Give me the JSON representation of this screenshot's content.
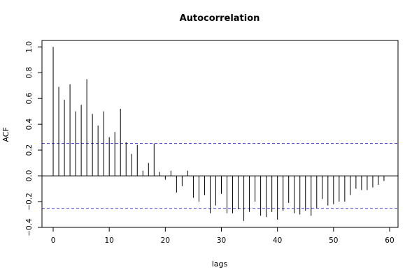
{
  "chart_data": {
    "type": "bar",
    "title": "Autocorrelation",
    "xlabel": "lags",
    "ylabel": "ACF",
    "xlim": [
      -2,
      61.5
    ],
    "ylim": [
      -0.4,
      1.05
    ],
    "x_ticks": [
      0,
      10,
      20,
      30,
      40,
      50,
      60
    ],
    "y_ticks": [
      -0.4,
      -0.2,
      0.0,
      0.2,
      0.4,
      0.6,
      0.8,
      1.0
    ],
    "y_tick_labels": [
      "−0.4",
      "−0.2",
      "0.0",
      "0.2",
      "0.4",
      "0.6",
      "0.8",
      "1.0"
    ],
    "confidence_bounds": [
      0.252,
      -0.252
    ],
    "zero_line": 0,
    "grid": false,
    "colors": {
      "bars": "#000000",
      "bounds": "#4444dd",
      "axes": "#000000"
    },
    "series": [
      {
        "x": [
          0,
          1,
          2,
          3,
          4,
          5,
          6,
          7,
          8,
          9,
          10,
          11,
          12,
          13,
          14,
          15,
          16,
          17,
          18,
          19,
          20,
          21,
          22,
          23,
          24,
          25,
          26,
          27,
          28,
          29,
          30,
          31,
          32,
          33,
          34,
          35,
          36,
          37,
          38,
          39,
          40,
          41,
          42,
          43,
          44,
          45,
          46,
          47,
          48,
          49,
          50,
          51,
          52,
          53,
          54,
          55,
          56,
          57,
          58,
          59
        ],
        "values": [
          1.0,
          0.69,
          0.59,
          0.71,
          0.5,
          0.55,
          0.75,
          0.48,
          0.39,
          0.5,
          0.3,
          0.34,
          0.52,
          0.26,
          0.17,
          0.24,
          0.04,
          0.1,
          0.25,
          0.03,
          -0.03,
          0.04,
          -0.13,
          -0.08,
          0.04,
          -0.17,
          -0.2,
          -0.15,
          -0.29,
          -0.23,
          -0.14,
          -0.29,
          -0.29,
          -0.26,
          -0.35,
          -0.28,
          -0.2,
          -0.31,
          -0.32,
          -0.28,
          -0.34,
          -0.27,
          -0.21,
          -0.29,
          -0.3,
          -0.27,
          -0.31,
          -0.25,
          -0.18,
          -0.23,
          -0.22,
          -0.2,
          -0.2,
          -0.15,
          -0.1,
          -0.11,
          -0.11,
          -0.09,
          -0.07,
          -0.04
        ]
      }
    ]
  }
}
